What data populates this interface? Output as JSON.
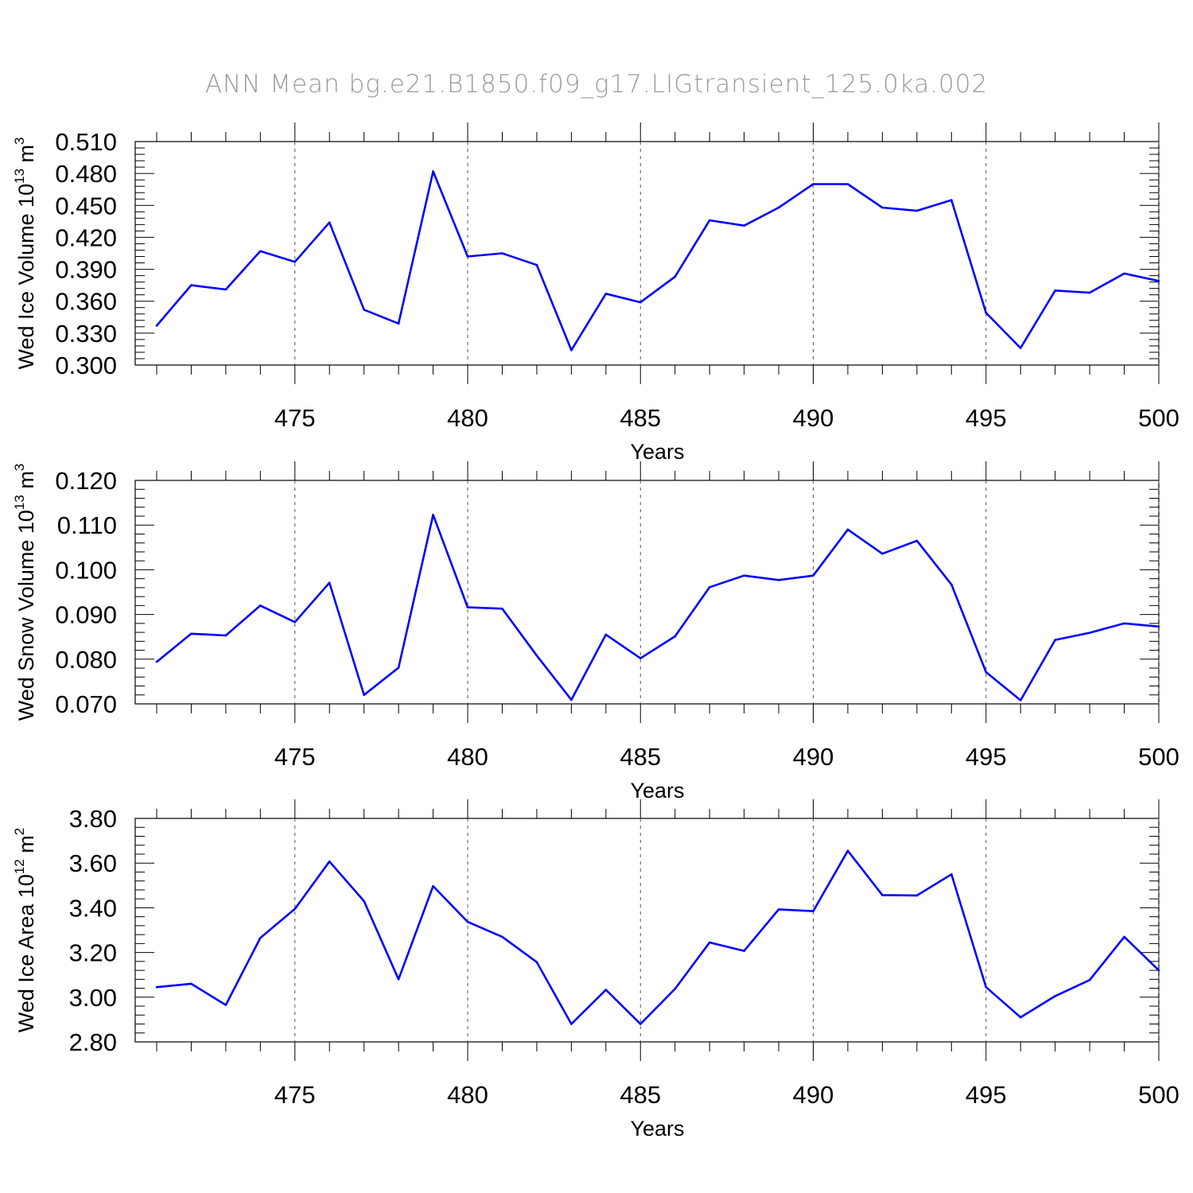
{
  "figure": {
    "title": "ANN Mean bg.e21.B1850.f09_g17.LIGtransient_125.0ka.002",
    "line_color": "#0000ff",
    "grid_color": "#555555"
  },
  "chart_data": [
    {
      "type": "line",
      "title": "",
      "xlabel": "Years",
      "ylabel": "Wed Ice Volume 10",
      "ylabel_exp": "13",
      "ylabel_unit": " m",
      "ylabel_unit_exp": "3",
      "xlim": [
        471,
        500
      ],
      "ylim": [
        0.3,
        0.51
      ],
      "x_ticks": [
        "475",
        "480",
        "485",
        "490",
        "495",
        "500"
      ],
      "y_ticks": [
        "0.300",
        "0.330",
        "0.360",
        "0.390",
        "0.420",
        "0.450",
        "0.480",
        "0.510"
      ],
      "grid": "x-dashed",
      "x": [
        471,
        472,
        473,
        474,
        475,
        476,
        477,
        478,
        479,
        480,
        481,
        482,
        483,
        484,
        485,
        486,
        487,
        488,
        489,
        490,
        491,
        492,
        493,
        494,
        495,
        496,
        497,
        498,
        499,
        500
      ],
      "series": [
        {
          "values": [
            0.337,
            0.375,
            0.371,
            0.407,
            0.397,
            0.434,
            0.352,
            0.339,
            0.482,
            0.402,
            0.405,
            0.394,
            0.314,
            0.367,
            0.359,
            0.383,
            0.436,
            0.431,
            0.448,
            0.47,
            0.47,
            0.448,
            0.445,
            0.455,
            0.349,
            0.316,
            0.37,
            0.368,
            0.386,
            0.379
          ]
        }
      ]
    },
    {
      "type": "line",
      "title": "",
      "xlabel": "Years",
      "ylabel": "Wed Snow Volume 10",
      "ylabel_exp": "13",
      "ylabel_unit": " m",
      "ylabel_unit_exp": "3",
      "xlim": [
        471,
        500
      ],
      "ylim": [
        0.07,
        0.12
      ],
      "x_ticks": [
        "475",
        "480",
        "485",
        "490",
        "495",
        "500"
      ],
      "y_ticks": [
        "0.070",
        "0.080",
        "0.090",
        "0.100",
        "0.110",
        "0.120"
      ],
      "grid": "x-dashed",
      "x": [
        471,
        472,
        473,
        474,
        475,
        476,
        477,
        478,
        479,
        480,
        481,
        482,
        483,
        484,
        485,
        486,
        487,
        488,
        489,
        490,
        491,
        492,
        493,
        494,
        495,
        496,
        497,
        498,
        499,
        500
      ],
      "series": [
        {
          "values": [
            0.0794,
            0.0857,
            0.0853,
            0.092,
            0.0883,
            0.0971,
            0.072,
            0.0781,
            0.1123,
            0.0916,
            0.0913,
            0.0808,
            0.0709,
            0.0855,
            0.0802,
            0.0851,
            0.0961,
            0.0987,
            0.0977,
            0.0987,
            0.109,
            0.1036,
            0.1065,
            0.0967,
            0.0771,
            0.0708,
            0.0843,
            0.0859,
            0.088,
            0.0873
          ]
        }
      ]
    },
    {
      "type": "line",
      "title": "",
      "xlabel": "Years",
      "ylabel": "Wed Ice Area 10",
      "ylabel_exp": "12",
      "ylabel_unit": " m",
      "ylabel_unit_exp": "2",
      "xlim": [
        471,
        500
      ],
      "ylim": [
        2.8,
        3.8
      ],
      "x_ticks": [
        "475",
        "480",
        "485",
        "490",
        "495",
        "500"
      ],
      "y_ticks": [
        "2.80",
        "3.00",
        "3.20",
        "3.40",
        "3.60",
        "3.80"
      ],
      "grid": "x-dashed",
      "x": [
        471,
        472,
        473,
        474,
        475,
        476,
        477,
        478,
        479,
        480,
        481,
        482,
        483,
        484,
        485,
        486,
        487,
        488,
        489,
        490,
        491,
        492,
        493,
        494,
        495,
        496,
        497,
        498,
        499,
        500
      ],
      "series": [
        {
          "values": [
            3.045,
            3.06,
            2.965,
            3.265,
            3.395,
            3.607,
            3.43,
            3.08,
            3.497,
            3.337,
            3.27,
            3.157,
            2.88,
            3.033,
            2.88,
            3.037,
            3.245,
            3.207,
            3.393,
            3.385,
            3.655,
            3.457,
            3.455,
            3.55,
            3.045,
            2.91,
            3.005,
            3.077,
            3.27,
            3.12
          ]
        }
      ]
    }
  ]
}
